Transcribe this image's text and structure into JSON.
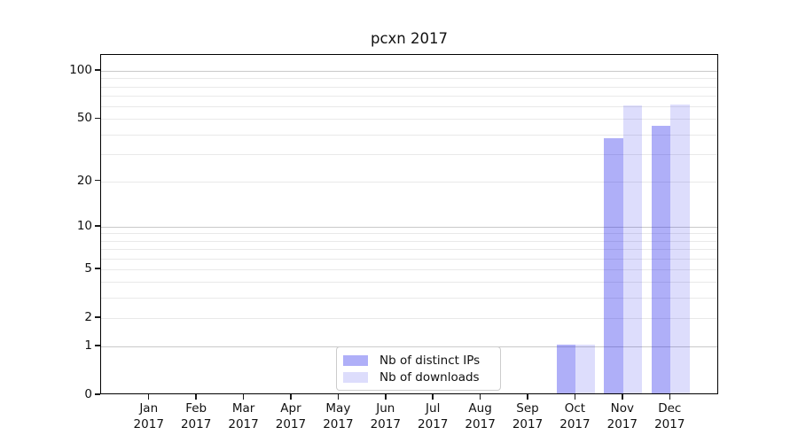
{
  "chart_data": {
    "type": "bar",
    "title": "pcxn 2017",
    "categories": [
      "Jan",
      "Feb",
      "Mar",
      "Apr",
      "May",
      "Jun",
      "Jul",
      "Aug",
      "Sep",
      "Oct",
      "Nov",
      "Dec"
    ],
    "year_label": "2017",
    "series": [
      {
        "name": "Nb of distinct IPs",
        "color": "rgba(25,25,235,0.35)",
        "values": [
          0,
          0,
          0,
          0,
          0,
          0,
          0,
          0,
          0,
          1,
          37,
          44
        ]
      },
      {
        "name": "Nb of downloads",
        "color": "rgba(25,25,235,0.15)",
        "values": [
          0,
          0,
          0,
          0,
          0,
          0,
          0,
          0,
          0,
          1,
          59,
          60
        ]
      }
    ],
    "xlabel": "",
    "ylabel": "",
    "yscale": "log1p",
    "ylim": [
      0,
      126
    ],
    "yticks_labeled": [
      0,
      1,
      2,
      5,
      10,
      20,
      50,
      100
    ],
    "grid_major": [
      1,
      10,
      100
    ],
    "grid_minor": [
      2,
      3,
      4,
      5,
      6,
      7,
      8,
      9,
      20,
      30,
      40,
      50,
      60,
      70,
      80,
      90
    ],
    "legend_position": "lower center",
    "bar_group_width": 0.8,
    "colors": {
      "grid_major": "#c9c9c9",
      "grid_minor": "#e9e9e9",
      "spine": "#000000",
      "legend_border": "#cccccc",
      "background": "#ffffff"
    }
  }
}
